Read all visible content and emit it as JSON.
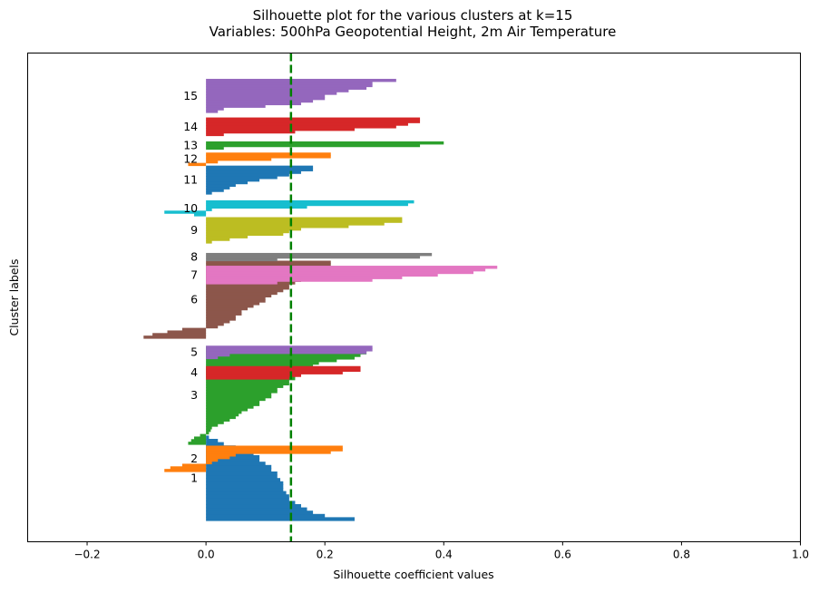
{
  "chart_data": {
    "type": "bar",
    "orientation": "horizontal",
    "title": "Silhouette plot for the various clusters at k=15",
    "subtitle": "Variables: 500hPa Geopotential Height, 2m Air Temperature",
    "xlabel": "Silhouette coefficient values",
    "ylabel": "Cluster labels",
    "xlim": [
      -0.3,
      1.0
    ],
    "ylim": [
      0,
      250
    ],
    "xticks": [
      "−0.2",
      "0.0",
      "0.2",
      "0.4",
      "0.6",
      "0.8",
      "1.0"
    ],
    "xtick_values": [
      -0.2,
      0.0,
      0.2,
      0.4,
      0.6,
      0.8,
      1.0
    ],
    "average_silhouette": 0.143,
    "average_line_color": "#008000",
    "grid": false,
    "clusters": [
      {
        "label": "1",
        "color": "#1f77b4",
        "start": 10,
        "values": [
          0.25,
          0.2,
          0.18,
          0.17,
          0.16,
          0.15,
          0.14,
          0.14,
          0.135,
          0.13,
          0.13,
          0.13,
          0.125,
          0.12,
          0.12,
          0.11,
          0.11,
          0.1,
          0.09,
          0.09,
          0.08,
          0.07,
          0.05,
          0.03,
          0.02,
          0.005
        ]
      },
      {
        "label": "2",
        "color": "#ff7f0e",
        "start": 46,
        "values": [
          -0.07,
          -0.06,
          -0.04,
          0.01,
          0.02,
          0.04,
          0.05,
          0.21,
          0.23,
          0.23
        ]
      },
      {
        "label": "2",
        "color": "#ff7f0e",
        "start": 46,
        "values": [],
        "_skip": true
      },
      {
        "label": "3",
        "color": "#2ca02c",
        "start": 66,
        "values": [
          -0.03,
          -0.025,
          -0.02,
          -0.01,
          0.005,
          0.008,
          0.01,
          0.02,
          0.03,
          0.04,
          0.05,
          0.055,
          0.06,
          0.07,
          0.08,
          0.09,
          0.09,
          0.1,
          0.11,
          0.11,
          0.12,
          0.12,
          0.13,
          0.14,
          0.14,
          0.15,
          0.15,
          0.16,
          0.17,
          0.18,
          0.18,
          0.19,
          0.22,
          0.25,
          0.26,
          0.27,
          0.27,
          0.27
        ]
      },
      {
        "label": "4",
        "color": "#d62728",
        "start": 114,
        "values": [
          0.14,
          0.16,
          0.23,
          0.26,
          0.26
        ]
      },
      {
        "label": "5",
        "color": "#9467bd",
        "start": 129,
        "values": [
          0.02,
          0.04,
          0.27,
          0.28,
          0.28
        ]
      },
      {
        "label": "6",
        "color": "#8c564b",
        "start": 144,
        "values": [
          -0.105,
          -0.09,
          -0.065,
          -0.04,
          0.02,
          0.03,
          0.04,
          0.05,
          0.05,
          0.06,
          0.06,
          0.07,
          0.08,
          0.09,
          0.1,
          0.1,
          0.11,
          0.12,
          0.13,
          0.14,
          0.14,
          0.15,
          0.16,
          0.17,
          0.17,
          0.18,
          0.2,
          0.21,
          0.21,
          0.21
        ]
      },
      {
        "label": "7",
        "color": "#e377c2",
        "start": 184,
        "values": [
          0.12,
          0.28,
          0.33,
          0.39,
          0.45,
          0.47,
          0.49
        ]
      },
      {
        "label": "8",
        "color": "#7f7f7f",
        "start": 201,
        "values": [
          0.12,
          0.36,
          0.38
        ]
      },
      {
        "label": "9",
        "color": "#bcbd22",
        "start": 214,
        "values": [
          0.01,
          0.04,
          0.07,
          0.13,
          0.14,
          0.16,
          0.24,
          0.3,
          0.33,
          0.33
        ]
      },
      {
        "label": "10",
        "color": "#17becf",
        "start": 234,
        "values": [
          -0.02,
          -0.07,
          0.01,
          0.17,
          0.34,
          0.35
        ]
      },
      {
        "label": "11",
        "color": "#1f77b4",
        "start": 250,
        "values": [
          0.01,
          0.03,
          0.04,
          0.05,
          0.07,
          0.09,
          0.12,
          0.14,
          0.16,
          0.18,
          0.18
        ]
      },
      {
        "label": "12",
        "color": "#ff7f0e",
        "start": 271,
        "values": [
          -0.03,
          0.02,
          0.11,
          0.21,
          0.21
        ]
      },
      {
        "label": "13",
        "color": "#2ca02c",
        "start": 283,
        "values": [
          0.03,
          0.36,
          0.4
        ]
      },
      {
        "label": "14",
        "color": "#d62728",
        "start": 293,
        "values": [
          0.03,
          0.15,
          0.25,
          0.32,
          0.34,
          0.36,
          0.36
        ]
      },
      {
        "label": "15",
        "color": "#9467bd",
        "start": 310,
        "values": [
          0.02,
          0.03,
          0.1,
          0.16,
          0.18,
          0.2,
          0.2,
          0.22,
          0.24,
          0.27,
          0.28,
          0.28,
          0.32
        ]
      }
    ]
  }
}
